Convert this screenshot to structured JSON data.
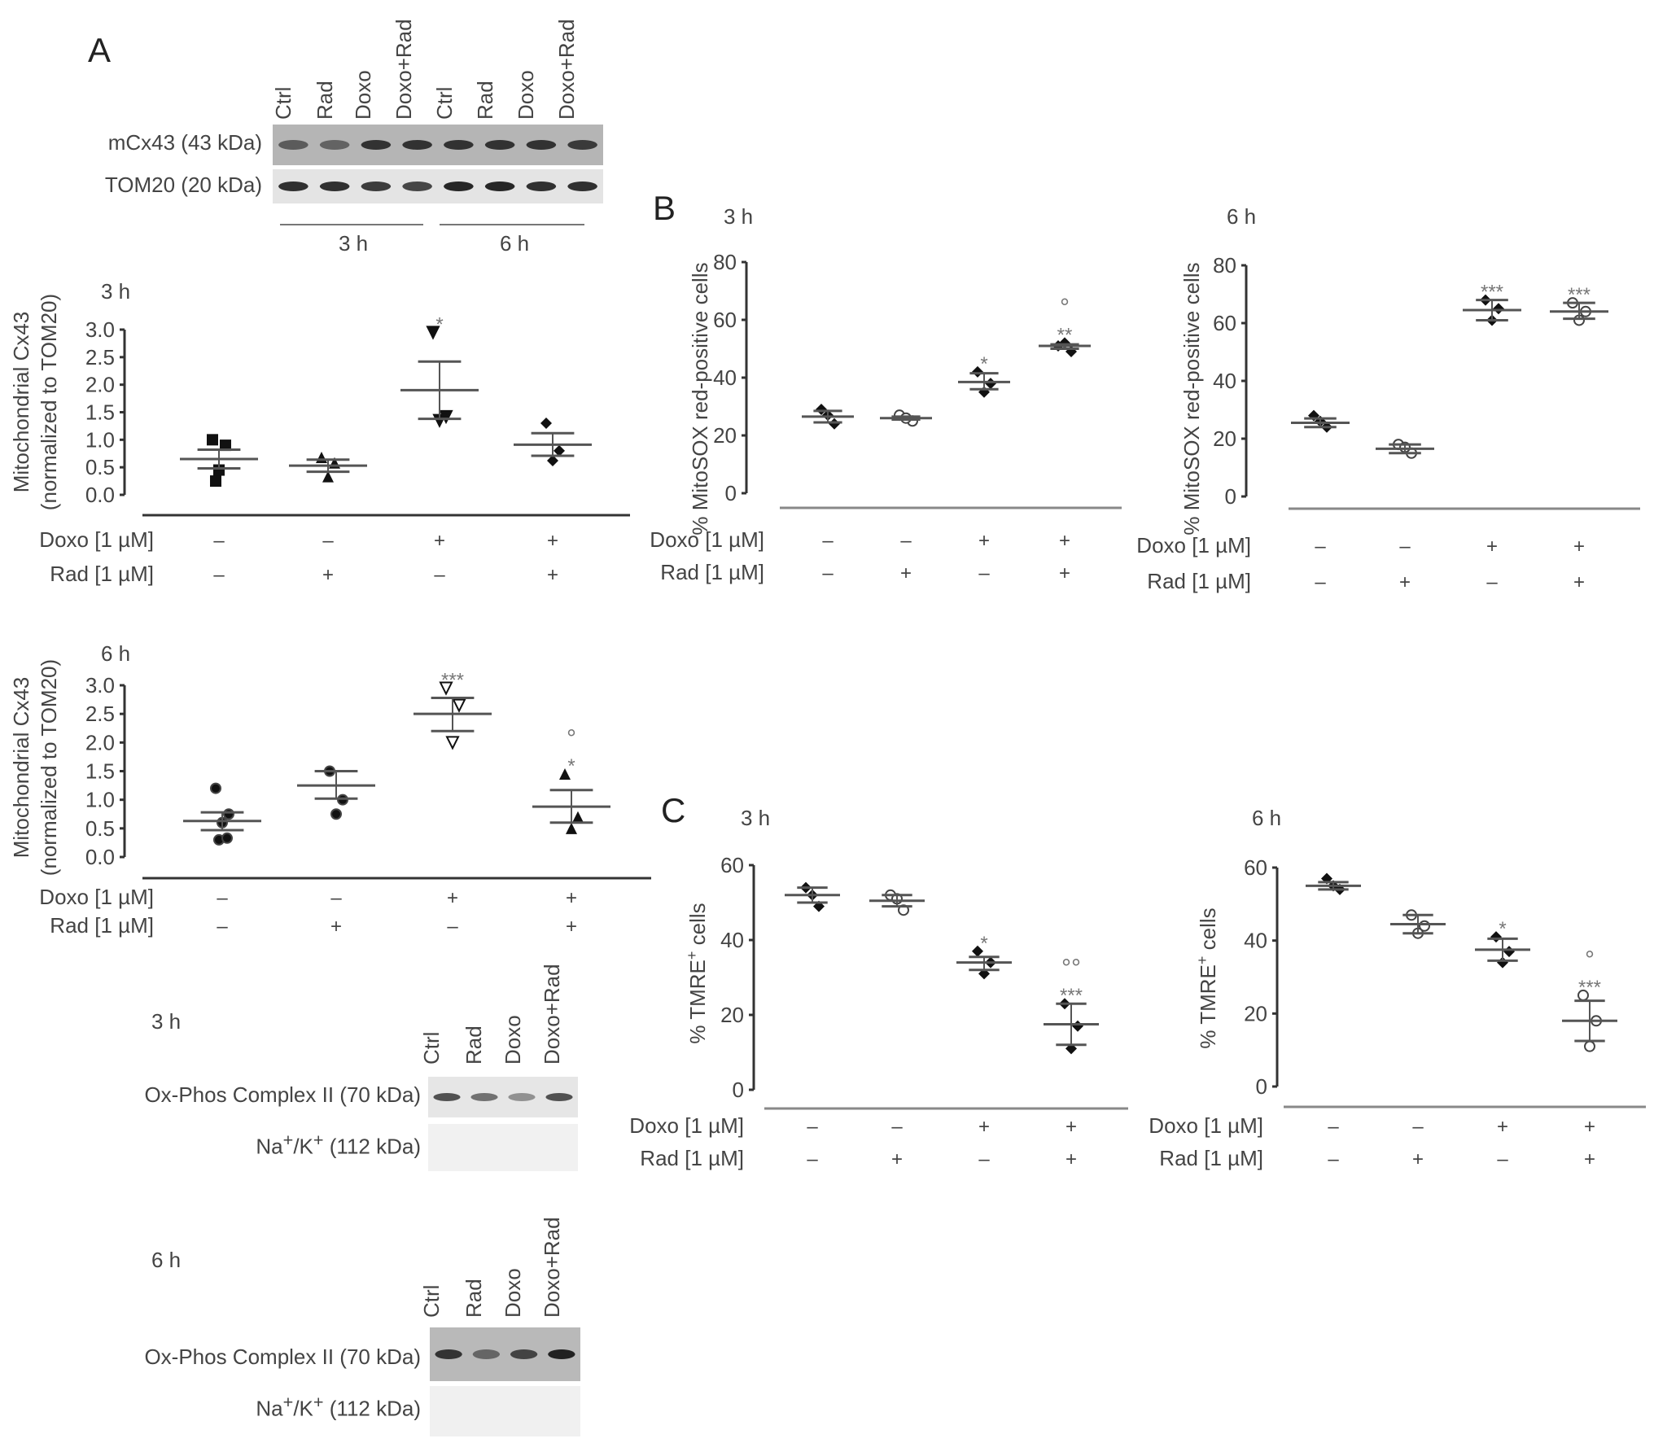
{
  "panels": {
    "a": "A",
    "b": "B",
    "c": "C"
  },
  "blot_top": {
    "lanes": [
      "Ctrl",
      "Rad",
      "Doxo",
      "Doxo+Rad",
      "Ctrl",
      "Rad",
      "Doxo",
      "Doxo+Rad"
    ],
    "rows": [
      "mCx43 (43 kDa)",
      "TOM20 (20 kDa)"
    ],
    "time_groups": [
      "3 h",
      "6 h"
    ]
  },
  "blot_bottom": [
    {
      "time": "3 h",
      "lanes": [
        "Ctrl",
        "Rad",
        "Doxo",
        "Doxo+Rad"
      ],
      "row1": "Ox-Phos Complex II (70 kDa)",
      "row2_pre": "Na",
      "row2_mid": "/K",
      "row2_post": " (112 kDa)",
      "sup": "+"
    },
    {
      "time": "6 h",
      "lanes": [
        "Ctrl",
        "Rad",
        "Doxo",
        "Doxo+Rad"
      ],
      "row1": "Ox-Phos Complex II (70 kDa)",
      "row2_pre": "Na",
      "row2_mid": "/K",
      "row2_post": " (112 kDa)",
      "sup": "+"
    }
  ],
  "chart_data": [
    {
      "type": "scatter",
      "panel": "A",
      "title": "3 h",
      "ylabel": [
        "Mitochondrial Cx43",
        "(normalized to TOM20)"
      ],
      "ylim": [
        0,
        3.0
      ],
      "yticks": [
        "0.0",
        "0.5",
        "1.0",
        "1.5",
        "2.0",
        "2.5",
        "3.0"
      ],
      "rows": [
        {
          "label": "Doxo [1 µM]",
          "values": [
            "–",
            "–",
            "+",
            "+"
          ]
        },
        {
          "label": "Rad [1 µM]",
          "values": [
            "–",
            "+",
            "–",
            "+"
          ]
        }
      ],
      "groups": [
        {
          "points": [
            1.0,
            0.9,
            0.45,
            0.25
          ],
          "mean": 0.65,
          "err": [
            0.48,
            0.82
          ],
          "marker": "square",
          "sig": []
        },
        {
          "points": [
            0.68,
            0.58,
            0.33
          ],
          "mean": 0.53,
          "err": [
            0.42,
            0.64
          ],
          "marker": "triangle",
          "sig": []
        },
        {
          "points": [
            2.95,
            1.42,
            1.35
          ],
          "mean": 1.9,
          "err": [
            1.38,
            2.42
          ],
          "marker": "triangle-down",
          "sig": [
            "*"
          ]
        },
        {
          "points": [
            1.3,
            0.8,
            0.62
          ],
          "mean": 0.91,
          "err": [
            0.71,
            1.12
          ],
          "marker": "diamond",
          "sig": []
        }
      ]
    },
    {
      "type": "scatter",
      "panel": "A",
      "title": "6 h",
      "ylabel": [
        "Mitochondrial Cx43",
        "(normalized to TOM20)"
      ],
      "ylim": [
        0,
        3.0
      ],
      "yticks": [
        "0.0",
        "0.5",
        "1.0",
        "1.5",
        "2.0",
        "2.5",
        "3.0"
      ],
      "rows": [
        {
          "label": "Doxo [1 µM]",
          "values": [
            "–",
            "–",
            "+",
            "+"
          ]
        },
        {
          "label": "Rad [1 µM]",
          "values": [
            "–",
            "+",
            "–",
            "+"
          ]
        }
      ],
      "groups": [
        {
          "points": [
            1.2,
            0.75,
            0.6,
            0.3,
            0.33
          ],
          "mean": 0.63,
          "err": [
            0.47,
            0.78
          ],
          "marker": "circle",
          "sig": []
        },
        {
          "points": [
            1.5,
            1.0,
            0.75
          ],
          "mean": 1.25,
          "err": [
            1.02,
            1.5
          ],
          "marker": "circle",
          "sig": []
        },
        {
          "points": [
            2.95,
            2.65,
            2.0
          ],
          "mean": 2.5,
          "err": [
            2.2,
            2.78
          ],
          "marker": "triangle-down-open",
          "sig": [
            "***"
          ]
        },
        {
          "points": [
            1.45,
            0.7,
            0.5
          ],
          "mean": 0.88,
          "err": [
            0.6,
            1.17
          ],
          "marker": "triangle",
          "sig": [
            "*",
            "°"
          ]
        }
      ]
    },
    {
      "type": "scatter",
      "panel": "B",
      "title": "3 h",
      "ylabel": [
        "% MitoSOX red-positive cells"
      ],
      "ylim": [
        0,
        80
      ],
      "yticks": [
        "0",
        "20",
        "40",
        "60",
        "80"
      ],
      "rows": [
        {
          "label": "Doxo [1 µM]",
          "values": [
            "–",
            "–",
            "+",
            "+"
          ]
        },
        {
          "label": "Rad [1 µM]",
          "values": [
            "–",
            "+",
            "–",
            "+"
          ]
        }
      ],
      "groups": [
        {
          "points": [
            29,
            24,
            27
          ],
          "mean": 26.5,
          "err": [
            24.5,
            28.5
          ],
          "marker": "diamond",
          "sig": []
        },
        {
          "points": [
            27,
            25,
            26
          ],
          "mean": 26,
          "err": [
            25.5,
            26.5
          ],
          "marker": "circle-open",
          "sig": []
        },
        {
          "points": [
            42,
            38,
            35
          ],
          "mean": 38.5,
          "err": [
            36,
            41.5
          ],
          "marker": "diamond",
          "sig": [
            "*"
          ]
        },
        {
          "points": [
            51,
            49,
            52
          ],
          "mean": 51,
          "err": [
            50,
            51.5
          ],
          "marker": "diamond",
          "sig": [
            "**",
            "°"
          ]
        }
      ]
    },
    {
      "type": "scatter",
      "panel": "B",
      "title": "6 h",
      "ylabel": [
        "% MitoSOX red-positive cells"
      ],
      "ylim": [
        0,
        80
      ],
      "yticks": [
        "0",
        "20",
        "40",
        "60",
        "80"
      ],
      "rows": [
        {
          "label": "Doxo [1 µM]",
          "values": [
            "–",
            "–",
            "+",
            "+"
          ]
        },
        {
          "label": "Rad [1 µM]",
          "values": [
            "–",
            "+",
            "–",
            "+"
          ]
        }
      ],
      "groups": [
        {
          "points": [
            28,
            24,
            26
          ],
          "mean": 25.5,
          "err": [
            24,
            27
          ],
          "marker": "diamond",
          "sig": []
        },
        {
          "points": [
            18,
            15,
            17
          ],
          "mean": 16.5,
          "err": [
            15,
            18
          ],
          "marker": "circle-open",
          "sig": []
        },
        {
          "points": [
            68,
            65,
            61
          ],
          "mean": 64.5,
          "err": [
            61,
            68
          ],
          "marker": "diamond",
          "sig": [
            "***"
          ]
        },
        {
          "points": [
            67,
            64,
            61
          ],
          "mean": 64,
          "err": [
            61.5,
            67
          ],
          "marker": "circle-open",
          "sig": [
            "***"
          ]
        }
      ]
    },
    {
      "type": "scatter",
      "panel": "C",
      "title": "3 h",
      "ylabel": [
        "% TMRE",
        "+",
        " cells"
      ],
      "ylim": [
        0,
        60
      ],
      "yticks": [
        "0",
        "20",
        "40",
        "60"
      ],
      "rows": [
        {
          "label": "Doxo [1 µM]",
          "values": [
            "–",
            "–",
            "+",
            "+"
          ]
        },
        {
          "label": "Rad [1 µM]",
          "values": [
            "–",
            "+",
            "–",
            "+"
          ]
        }
      ],
      "groups": [
        {
          "points": [
            54,
            49,
            52
          ],
          "mean": 52,
          "err": [
            50,
            54
          ],
          "marker": "diamond",
          "sig": []
        },
        {
          "points": [
            52,
            48,
            51
          ],
          "mean": 50.5,
          "err": [
            49,
            52
          ],
          "marker": "circle-open",
          "sig": []
        },
        {
          "points": [
            37,
            34,
            31
          ],
          "mean": 34,
          "err": [
            32,
            35.5
          ],
          "marker": "diamond",
          "sig": [
            "*"
          ]
        },
        {
          "points": [
            23,
            17,
            11
          ],
          "mean": 17.5,
          "err": [
            12,
            23
          ],
          "marker": "diamond",
          "sig": [
            "***",
            "°°"
          ]
        }
      ]
    },
    {
      "type": "scatter",
      "panel": "C",
      "title": "6 h",
      "ylabel": [
        "% TMRE",
        "+",
        " cells"
      ],
      "ylim": [
        0,
        60
      ],
      "yticks": [
        "0",
        "20",
        "40",
        "60"
      ],
      "rows": [
        {
          "label": "Doxo [1 µM]",
          "values": [
            "–",
            "–",
            "+",
            "+"
          ]
        },
        {
          "label": "Rad [1 µM]",
          "values": [
            "–",
            "+",
            "–",
            "+"
          ]
        }
      ],
      "groups": [
        {
          "points": [
            57,
            54,
            55
          ],
          "mean": 55,
          "err": [
            54,
            56
          ],
          "marker": "diamond",
          "sig": []
        },
        {
          "points": [
            47,
            44,
            42
          ],
          "mean": 44.5,
          "err": [
            42,
            47
          ],
          "marker": "circle-open",
          "sig": []
        },
        {
          "points": [
            41,
            37,
            34
          ],
          "mean": 37.5,
          "err": [
            34.5,
            40.5
          ],
          "marker": "diamond",
          "sig": [
            "*"
          ]
        },
        {
          "points": [
            25,
            18,
            11
          ],
          "mean": 18,
          "err": [
            12.5,
            23.5
          ],
          "marker": "circle-open",
          "sig": [
            "***",
            "°"
          ]
        }
      ]
    }
  ]
}
